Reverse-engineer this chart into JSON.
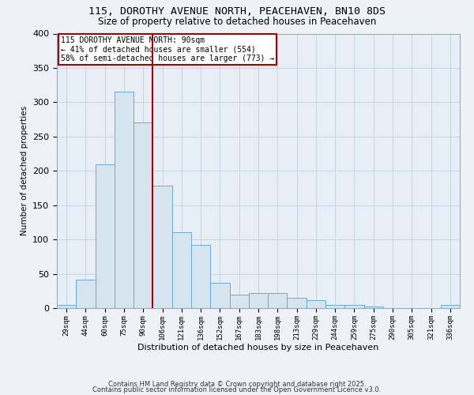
{
  "title_line1": "115, DOROTHY AVENUE NORTH, PEACEHAVEN, BN10 8DS",
  "title_line2": "Size of property relative to detached houses in Peacehaven",
  "xlabel": "Distribution of detached houses by size in Peacehaven",
  "ylabel": "Number of detached properties",
  "annotation_line1": "115 DOROTHY AVENUE NORTH: 90sqm",
  "annotation_line2": "← 41% of detached houses are smaller (554)",
  "annotation_line3": "58% of semi-detached houses are larger (773) →",
  "property_size_bin_index": 4,
  "bar_labels": [
    "29sqm",
    "44sqm",
    "60sqm",
    "75sqm",
    "90sqm",
    "106sqm",
    "121sqm",
    "136sqm",
    "152sqm",
    "167sqm",
    "183sqm",
    "198sqm",
    "213sqm",
    "229sqm",
    "244sqm",
    "259sqm",
    "275sqm",
    "290sqm",
    "305sqm",
    "321sqm",
    "336sqm"
  ],
  "bar_values": [
    5,
    42,
    210,
    315,
    270,
    178,
    110,
    92,
    37,
    20,
    22,
    22,
    15,
    12,
    5,
    5,
    2,
    0,
    0,
    0,
    5
  ],
  "bar_color": "#d6e4f0",
  "bar_edge_color": "#6aaad4",
  "red_line_color": "#aa0000",
  "background_color": "#eef2f7",
  "plot_bg_color": "#e8eef6",
  "grid_color": "#c5cfe0",
  "ylim": [
    0,
    400
  ],
  "footnote1": "Contains HM Land Registry data © Crown copyright and database right 2025.",
  "footnote2": "Contains public sector information licensed under the Open Government Licence v3.0."
}
